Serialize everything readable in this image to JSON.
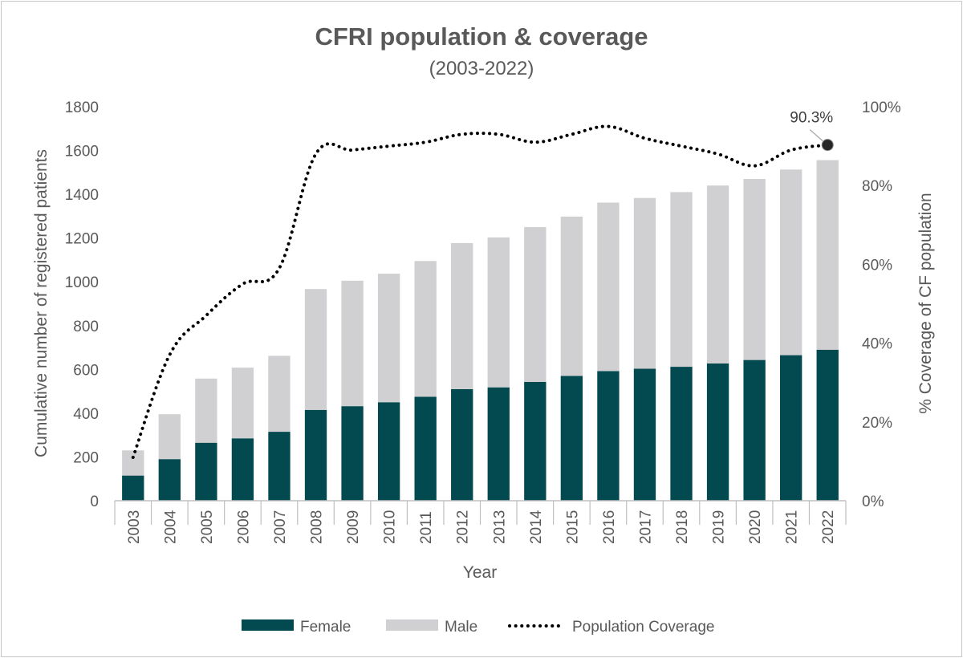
{
  "chart_data": {
    "type": "bar",
    "title": "CFRI population & coverage",
    "subtitle": "(2003-2022)",
    "xlabel": "Year",
    "ylabel": "Cumulative number of registered patients",
    "y2label": "% Coverage of CF population",
    "ylim": [
      0,
      1800
    ],
    "y2lim": [
      0,
      100
    ],
    "yticks": [
      "0",
      "200",
      "400",
      "600",
      "800",
      "1000",
      "1200",
      "1400",
      "1600",
      "1800"
    ],
    "y2ticks": [
      "0%",
      "20%",
      "40%",
      "60%",
      "80%",
      "100%"
    ],
    "categories": [
      "2003",
      "2004",
      "2005",
      "2006",
      "2007",
      "2008",
      "2009",
      "2010",
      "2011",
      "2012",
      "2013",
      "2014",
      "2015",
      "2016",
      "2017",
      "2018",
      "2019",
      "2020",
      "2021",
      "2022"
    ],
    "series": [
      {
        "name": "Female",
        "kind": "stacked-bar",
        "color": "#024a50",
        "values": [
          115,
          190,
          265,
          285,
          315,
          415,
          432,
          450,
          475,
          510,
          518,
          543,
          570,
          592,
          603,
          612,
          627,
          643,
          665,
          690
        ]
      },
      {
        "name": "Male",
        "kind": "stacked-bar",
        "color": "#d0cfd1",
        "values": [
          115,
          205,
          293,
          323,
          347,
          552,
          573,
          587,
          620,
          667,
          685,
          707,
          728,
          770,
          780,
          798,
          813,
          827,
          848,
          866
        ]
      },
      {
        "name": "Population Coverage",
        "kind": "dotted-line",
        "axis": "secondary",
        "color": "#000000",
        "values": [
          11,
          37,
          47,
          55,
          59,
          88,
          89,
          90,
          91,
          93,
          93,
          91,
          93,
          95,
          92,
          90,
          88,
          85,
          89,
          90.3
        ]
      }
    ],
    "annotations": [
      {
        "text": "90.3%",
        "category": "2022",
        "series": "Population Coverage"
      }
    ],
    "legend": {
      "position": "bottom",
      "entries": [
        "Female",
        "Male",
        "Population Coverage"
      ]
    },
    "grid": false
  }
}
